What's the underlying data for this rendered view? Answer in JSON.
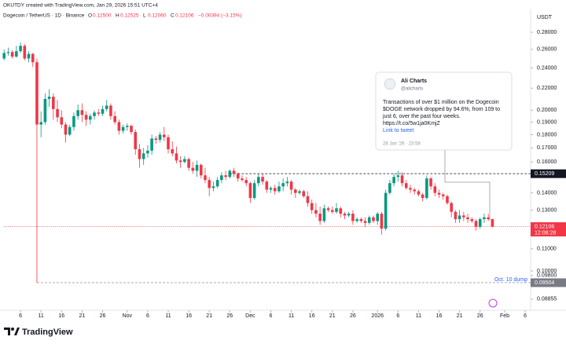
{
  "chart_data": {
    "type": "candlestick",
    "attribution": "OKUTDY created with TradingView.com, Jan 29, 2026 15:51 UTC+4",
    "currency": "USDT",
    "legend": {
      "symbol": "Dogecoin / TetherUS · 1D · Binance",
      "fields": [
        {
          "label": "O",
          "value": "0.12500"
        },
        {
          "label": "H",
          "value": "0.12525"
        },
        {
          "label": "L",
          "value": "0.12060"
        },
        {
          "label": "C",
          "value": "0.12106"
        }
      ],
      "change": "−0.00394 (−3.15%)"
    },
    "log_scale": true,
    "grid": false,
    "up_color": "#089981",
    "down_color": "#f23645",
    "categories": [
      "Oct 2",
      "Oct 3",
      "Oct 4",
      "Oct 5",
      "Oct 6",
      "Oct 7",
      "Oct 8",
      "Oct 9",
      "Oct 10",
      "Oct 11",
      "Oct 12",
      "Oct 13",
      "Oct 14",
      "Oct 15",
      "Oct 16",
      "Oct 17",
      "Oct 18",
      "Oct 19",
      "Oct 20",
      "Oct 21",
      "Oct 22",
      "Oct 23",
      "Oct 24",
      "Oct 25",
      "Oct 26",
      "Oct 27",
      "Oct 28",
      "Oct 29",
      "Oct 30",
      "Oct 31",
      "Nov 1",
      "Nov 2",
      "Nov 3",
      "Nov 4",
      "Nov 5",
      "Nov 6",
      "Nov 7",
      "Nov 8",
      "Nov 9",
      "Nov 10",
      "Nov 11",
      "Nov 12",
      "Nov 13",
      "Nov 14",
      "Nov 15",
      "Nov 16",
      "Nov 17",
      "Nov 18",
      "Nov 19",
      "Nov 20",
      "Nov 21",
      "Nov 22",
      "Nov 23",
      "Nov 24",
      "Nov 25",
      "Nov 26",
      "Nov 27",
      "Nov 28",
      "Nov 29",
      "Nov 30",
      "Dec 1",
      "Dec 2",
      "Dec 3",
      "Dec 4",
      "Dec 5",
      "Dec 6",
      "Dec 7",
      "Dec 8",
      "Dec 9",
      "Dec 10",
      "Dec 11",
      "Dec 12",
      "Dec 13",
      "Dec 14",
      "Dec 15",
      "Dec 16",
      "Dec 17",
      "Dec 18",
      "Dec 19",
      "Dec 20",
      "Dec 21",
      "Dec 22",
      "Dec 23",
      "Dec 24",
      "Dec 25",
      "Dec 26",
      "Dec 27",
      "Dec 28",
      "Dec 29",
      "Dec 30",
      "Dec 31",
      "Jan 1",
      "Jan 2",
      "Jan 3",
      "Jan 4",
      "Jan 5",
      "Jan 6",
      "Jan 7",
      "Jan 8",
      "Jan 9",
      "Jan 10",
      "Jan 11",
      "Jan 12",
      "Jan 13",
      "Jan 14",
      "Jan 15",
      "Jan 16",
      "Jan 17",
      "Jan 18",
      "Jan 19",
      "Jan 20",
      "Jan 21",
      "Jan 22",
      "Jan 23",
      "Jan 24",
      "Jan 25",
      "Jan 26",
      "Jan 27",
      "Jan 28",
      "Jan 29",
      "Jan 30",
      "Jan 31",
      "Feb 1",
      "Feb 2",
      "Feb 3",
      "Feb 4",
      "Feb 5",
      "Feb 6",
      "Feb 7"
    ],
    "series": [
      {
        "name": "Dogecoin / TetherUS",
        "values": [
          [
            0.25,
            0.26,
            0.248,
            0.256
          ],
          [
            0.256,
            0.262,
            0.253,
            0.257
          ],
          [
            0.257,
            0.259,
            0.25,
            0.252
          ],
          [
            0.252,
            0.264,
            0.251,
            0.258
          ],
          [
            0.258,
            0.268,
            0.256,
            0.264
          ],
          [
            0.264,
            0.266,
            0.248,
            0.25
          ],
          [
            0.25,
            0.258,
            0.246,
            0.255
          ],
          [
            0.255,
            0.256,
            0.241,
            0.246
          ],
          [
            0.246,
            0.25,
            0.09504,
            0.188
          ],
          [
            0.188,
            0.199,
            0.178,
            0.19
          ],
          [
            0.19,
            0.215,
            0.188,
            0.21
          ],
          [
            0.21,
            0.219,
            0.203,
            0.212
          ],
          [
            0.212,
            0.215,
            0.192,
            0.201
          ],
          [
            0.201,
            0.209,
            0.19,
            0.194
          ],
          [
            0.194,
            0.2,
            0.185,
            0.188
          ],
          [
            0.188,
            0.19,
            0.174,
            0.18
          ],
          [
            0.18,
            0.188,
            0.179,
            0.186
          ],
          [
            0.186,
            0.198,
            0.183,
            0.195
          ],
          [
            0.195,
            0.205,
            0.192,
            0.2
          ],
          [
            0.2,
            0.206,
            0.19,
            0.196
          ],
          [
            0.196,
            0.199,
            0.187,
            0.192
          ],
          [
            0.192,
            0.197,
            0.188,
            0.195
          ],
          [
            0.195,
            0.2,
            0.192,
            0.198
          ],
          [
            0.198,
            0.201,
            0.195,
            0.197
          ],
          [
            0.197,
            0.204,
            0.195,
            0.201
          ],
          [
            0.201,
            0.209,
            0.199,
            0.204
          ],
          [
            0.204,
            0.206,
            0.192,
            0.195
          ],
          [
            0.195,
            0.199,
            0.188,
            0.19
          ],
          [
            0.19,
            0.192,
            0.18,
            0.183
          ],
          [
            0.183,
            0.188,
            0.181,
            0.186
          ],
          [
            0.186,
            0.189,
            0.183,
            0.187
          ],
          [
            0.187,
            0.188,
            0.18,
            0.182
          ],
          [
            0.182,
            0.184,
            0.165,
            0.169
          ],
          [
            0.169,
            0.173,
            0.156,
            0.162
          ],
          [
            0.162,
            0.17,
            0.158,
            0.166
          ],
          [
            0.166,
            0.172,
            0.163,
            0.168
          ],
          [
            0.168,
            0.18,
            0.165,
            0.177
          ],
          [
            0.177,
            0.179,
            0.173,
            0.176
          ],
          [
            0.176,
            0.182,
            0.174,
            0.18
          ],
          [
            0.18,
            0.186,
            0.175,
            0.178
          ],
          [
            0.178,
            0.18,
            0.166,
            0.169
          ],
          [
            0.169,
            0.175,
            0.164,
            0.166
          ],
          [
            0.166,
            0.171,
            0.159,
            0.161
          ],
          [
            0.161,
            0.164,
            0.156,
            0.16
          ],
          [
            0.16,
            0.164,
            0.159,
            0.162
          ],
          [
            0.162,
            0.163,
            0.154,
            0.156
          ],
          [
            0.156,
            0.16,
            0.152,
            0.154
          ],
          [
            0.154,
            0.161,
            0.15,
            0.158
          ],
          [
            0.158,
            0.159,
            0.149,
            0.151
          ],
          [
            0.151,
            0.156,
            0.146,
            0.148
          ],
          [
            0.148,
            0.15,
            0.138,
            0.143
          ],
          [
            0.143,
            0.147,
            0.141,
            0.144
          ],
          [
            0.144,
            0.15,
            0.143,
            0.148
          ],
          [
            0.148,
            0.153,
            0.146,
            0.151
          ],
          [
            0.151,
            0.154,
            0.148,
            0.15
          ],
          [
            0.15,
            0.155,
            0.149,
            0.154
          ],
          [
            0.154,
            0.156,
            0.15,
            0.152
          ],
          [
            0.152,
            0.153,
            0.147,
            0.149
          ],
          [
            0.149,
            0.151,
            0.147,
            0.148
          ],
          [
            0.148,
            0.15,
            0.144,
            0.146
          ],
          [
            0.146,
            0.147,
            0.134,
            0.137
          ],
          [
            0.137,
            0.148,
            0.136,
            0.146
          ],
          [
            0.146,
            0.152,
            0.144,
            0.15
          ],
          [
            0.15,
            0.152,
            0.145,
            0.147
          ],
          [
            0.147,
            0.148,
            0.14,
            0.142
          ],
          [
            0.142,
            0.144,
            0.14,
            0.143
          ],
          [
            0.143,
            0.145,
            0.139,
            0.141
          ],
          [
            0.141,
            0.147,
            0.14,
            0.144
          ],
          [
            0.144,
            0.149,
            0.141,
            0.146
          ],
          [
            0.146,
            0.15,
            0.144,
            0.147
          ],
          [
            0.147,
            0.148,
            0.139,
            0.142
          ],
          [
            0.142,
            0.143,
            0.137,
            0.14
          ],
          [
            0.14,
            0.142,
            0.139,
            0.141
          ],
          [
            0.141,
            0.142,
            0.137,
            0.138
          ],
          [
            0.138,
            0.141,
            0.132,
            0.134
          ],
          [
            0.134,
            0.136,
            0.128,
            0.13
          ],
          [
            0.13,
            0.134,
            0.126,
            0.128
          ],
          [
            0.128,
            0.132,
            0.122,
            0.124
          ],
          [
            0.124,
            0.133,
            0.123,
            0.131
          ],
          [
            0.131,
            0.132,
            0.129,
            0.13
          ],
          [
            0.13,
            0.132,
            0.128,
            0.129
          ],
          [
            0.129,
            0.134,
            0.128,
            0.131
          ],
          [
            0.131,
            0.132,
            0.126,
            0.128
          ],
          [
            0.128,
            0.129,
            0.125,
            0.127
          ],
          [
            0.127,
            0.129,
            0.126,
            0.128
          ],
          [
            0.128,
            0.13,
            0.122,
            0.124
          ],
          [
            0.124,
            0.126,
            0.123,
            0.125
          ],
          [
            0.125,
            0.126,
            0.123,
            0.124
          ],
          [
            0.124,
            0.126,
            0.121,
            0.123
          ],
          [
            0.123,
            0.127,
            0.122,
            0.126
          ],
          [
            0.126,
            0.127,
            0.123,
            0.124
          ],
          [
            0.124,
            0.129,
            0.122,
            0.128
          ],
          [
            0.128,
            0.129,
            0.117,
            0.12
          ],
          [
            0.12,
            0.142,
            0.119,
            0.14
          ],
          [
            0.14,
            0.148,
            0.139,
            0.146
          ],
          [
            0.146,
            0.152,
            0.144,
            0.15
          ],
          [
            0.15,
            0.154,
            0.147,
            0.151
          ],
          [
            0.151,
            0.153,
            0.144,
            0.146
          ],
          [
            0.146,
            0.148,
            0.142,
            0.143
          ],
          [
            0.143,
            0.145,
            0.14,
            0.142
          ],
          [
            0.142,
            0.143,
            0.139,
            0.141
          ],
          [
            0.141,
            0.142,
            0.138,
            0.139
          ],
          [
            0.139,
            0.14,
            0.135,
            0.137
          ],
          [
            0.137,
            0.151,
            0.136,
            0.149
          ],
          [
            0.149,
            0.15,
            0.142,
            0.144
          ],
          [
            0.144,
            0.146,
            0.138,
            0.14
          ],
          [
            0.14,
            0.142,
            0.137,
            0.139
          ],
          [
            0.139,
            0.14,
            0.136,
            0.138
          ],
          [
            0.138,
            0.139,
            0.133,
            0.134
          ],
          [
            0.134,
            0.135,
            0.126,
            0.129
          ],
          [
            0.129,
            0.13,
            0.123,
            0.125
          ],
          [
            0.125,
            0.13,
            0.123,
            0.127
          ],
          [
            0.127,
            0.129,
            0.124,
            0.126
          ],
          [
            0.126,
            0.128,
            0.123,
            0.125
          ],
          [
            0.125,
            0.126,
            0.123,
            0.124
          ],
          [
            0.124,
            0.125,
            0.119,
            0.121
          ],
          [
            0.121,
            0.126,
            0.12,
            0.125
          ],
          [
            0.125,
            0.128,
            0.123,
            0.126
          ],
          [
            0.126,
            0.128,
            0.124,
            0.125
          ],
          [
            0.125,
            0.12525,
            0.1206,
            0.12106
          ],
          null,
          null,
          null,
          null,
          null,
          null,
          null,
          null,
          null
        ]
      }
    ],
    "ylim": [
      0.0844,
      0.3089
    ],
    "yticks": [
      {
        "value": 0.28,
        "label": "0.28000"
      },
      {
        "value": 0.26,
        "label": "0.26000"
      },
      {
        "value": 0.24,
        "label": "0.24000"
      },
      {
        "value": 0.22,
        "label": "0.22000"
      },
      {
        "value": 0.2,
        "label": "0.20000"
      },
      {
        "value": 0.19,
        "label": "0.19000"
      },
      {
        "value": 0.18,
        "label": "0.18000"
      },
      {
        "value": 0.17,
        "label": "0.17000"
      },
      {
        "value": 0.16,
        "label": "0.16000"
      },
      {
        "value": 0.14,
        "label": "0.14000"
      },
      {
        "value": 0.13,
        "label": "0.13000"
      },
      {
        "value": 0.11,
        "label": "0.11000"
      },
      {
        "value": 0.1,
        "label": "0.10000"
      },
      {
        "value": 0.098,
        "label": "0.09800"
      },
      {
        "value": 0.08855,
        "label": "0.08855"
      }
    ],
    "xticks": [
      {
        "value": "Oct 6",
        "label": "6"
      },
      {
        "value": "Oct 11",
        "label": "11"
      },
      {
        "value": "Oct 16",
        "label": "16"
      },
      {
        "value": "Oct 21",
        "label": "21"
      },
      {
        "value": "Oct 26",
        "label": "26"
      },
      {
        "value": "Nov 1",
        "label": "Nov"
      },
      {
        "value": "Nov 6",
        "label": "6"
      },
      {
        "value": "Nov 11",
        "label": "11"
      },
      {
        "value": "Nov 16",
        "label": "16"
      },
      {
        "value": "Nov 21",
        "label": "21"
      },
      {
        "value": "Nov 26",
        "label": "26"
      },
      {
        "value": "Dec 1",
        "label": "Dec"
      },
      {
        "value": "Dec 6",
        "label": "6"
      },
      {
        "value": "Dec 11",
        "label": "11"
      },
      {
        "value": "Dec 16",
        "label": "16"
      },
      {
        "value": "Dec 21",
        "label": "21"
      },
      {
        "value": "Dec 26",
        "label": "26"
      },
      {
        "value": "Jan 1",
        "label": "2026"
      },
      {
        "value": "Jan 6",
        "label": "6"
      },
      {
        "value": "Jan 11",
        "label": "11"
      },
      {
        "value": "Jan 16",
        "label": "16"
      },
      {
        "value": "Jan 21",
        "label": "21"
      },
      {
        "value": "Jan 26",
        "label": "26"
      },
      {
        "value": "Feb 1",
        "label": "Feb"
      },
      {
        "value": "Feb 6",
        "label": "6"
      }
    ],
    "price_lines": [
      {
        "value": 0.15209,
        "from": "Nov 26",
        "color": "#131722",
        "style": "dashed"
      },
      {
        "value": 0.12106,
        "from": "Oct 2",
        "color": "#f23645",
        "style": "dotted",
        "countdown": "12:08:28"
      },
      {
        "value": 0.09504,
        "from": "Oct 10",
        "color": "#787b86",
        "style": "dashed",
        "annotation": "Oct. 10 dump"
      }
    ],
    "tweet": {
      "author": "Ali Charts",
      "handle": "@alicharts",
      "lines": [
        "Transactions of over $1 million on the Dogecoin",
        "$DOGE network dropped by 94.6%, from 109 to",
        "just 6, over the past four weeks.",
        "https://t.co/5w1ja0KmjZ"
      ],
      "link": "Link to tweet",
      "time": "28 Jan '26 · 23:58"
    },
    "branding": "TradingView"
  }
}
